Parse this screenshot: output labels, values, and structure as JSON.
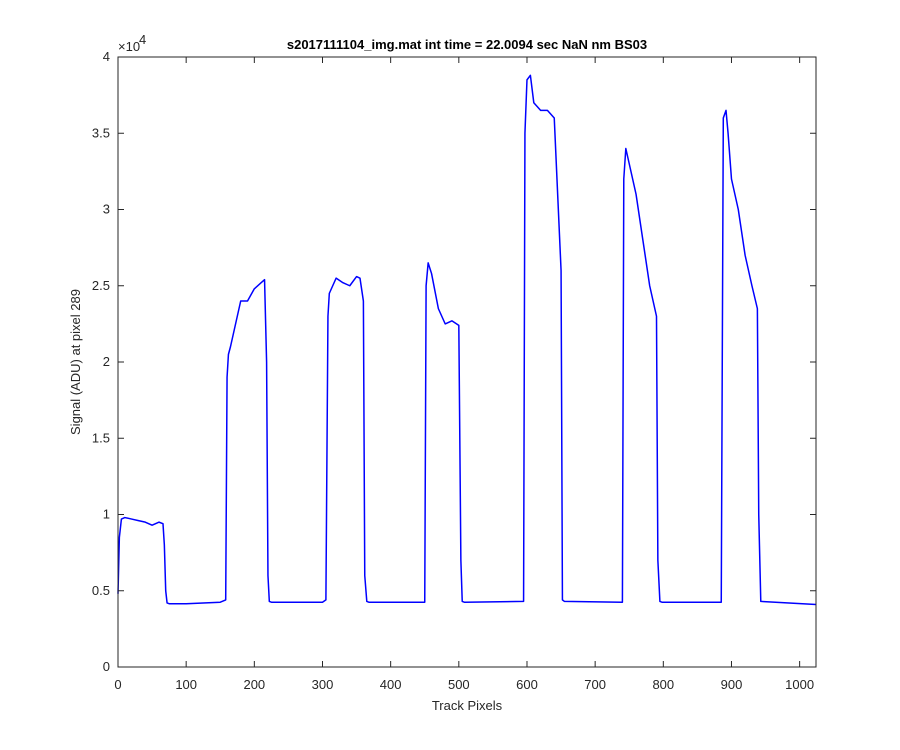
{
  "chart_data": {
    "type": "line",
    "title": "s2017111104_img.mat int time = 22.0094 sec  NaN nm BS03",
    "xlabel": "Track Pixels",
    "ylabel": "Signal (ADU) at pixel 289",
    "xlim": [
      0,
      1024
    ],
    "ylim": [
      0,
      40000
    ],
    "x_ticks": [
      0,
      100,
      200,
      300,
      400,
      500,
      600,
      700,
      800,
      900,
      1000
    ],
    "y_ticks": [
      0,
      5000,
      10000,
      15000,
      20000,
      25000,
      30000,
      35000,
      40000
    ],
    "y_tick_labels": [
      "0",
      "0.5",
      "1",
      "1.5",
      "2",
      "2.5",
      "3",
      "3.5",
      "4"
    ],
    "y_exponent_label": "×10",
    "y_exponent_power": "4",
    "grid": false,
    "series": [
      {
        "color": "#0000FF",
        "x": [
          0,
          2,
          5,
          10,
          20,
          30,
          40,
          50,
          60,
          66,
          68,
          70,
          72,
          75,
          100,
          150,
          158,
          160,
          162,
          165,
          170,
          180,
          190,
          200,
          210,
          215,
          218,
          220,
          222,
          225,
          300,
          305,
          308,
          310,
          320,
          330,
          340,
          350,
          355,
          360,
          362,
          365,
          368,
          450,
          452,
          455,
          460,
          470,
          480,
          490,
          500,
          503,
          505,
          508,
          595,
          597,
          600,
          605,
          610,
          620,
          630,
          640,
          650,
          652,
          655,
          740,
          742,
          745,
          750,
          760,
          770,
          780,
          790,
          792,
          795,
          798,
          885,
          888,
          892,
          895,
          900,
          910,
          920,
          930,
          938,
          940,
          943,
          1024
        ],
        "y": [
          4800,
          8500,
          9700,
          9800,
          9700,
          9600,
          9500,
          9300,
          9500,
          9400,
          8000,
          5000,
          4200,
          4150,
          4150,
          4250,
          4400,
          19000,
          20500,
          21000,
          22000,
          24000,
          24000,
          24800,
          25200,
          25400,
          20000,
          6000,
          4300,
          4250,
          4250,
          4400,
          23000,
          24500,
          25500,
          25200,
          25000,
          25600,
          25500,
          24000,
          6000,
          4300,
          4250,
          4250,
          25000,
          26500,
          25800,
          23500,
          22500,
          22700,
          22400,
          7000,
          4300,
          4250,
          4300,
          35000,
          38500,
          38800,
          37000,
          36500,
          36500,
          36000,
          26000,
          4400,
          4300,
          4250,
          32000,
          34000,
          33000,
          31000,
          28000,
          25000,
          23000,
          7000,
          4300,
          4250,
          4250,
          36000,
          36500,
          35000,
          32000,
          30000,
          27000,
          25000,
          23500,
          10000,
          4300,
          4100
        ]
      }
    ]
  }
}
